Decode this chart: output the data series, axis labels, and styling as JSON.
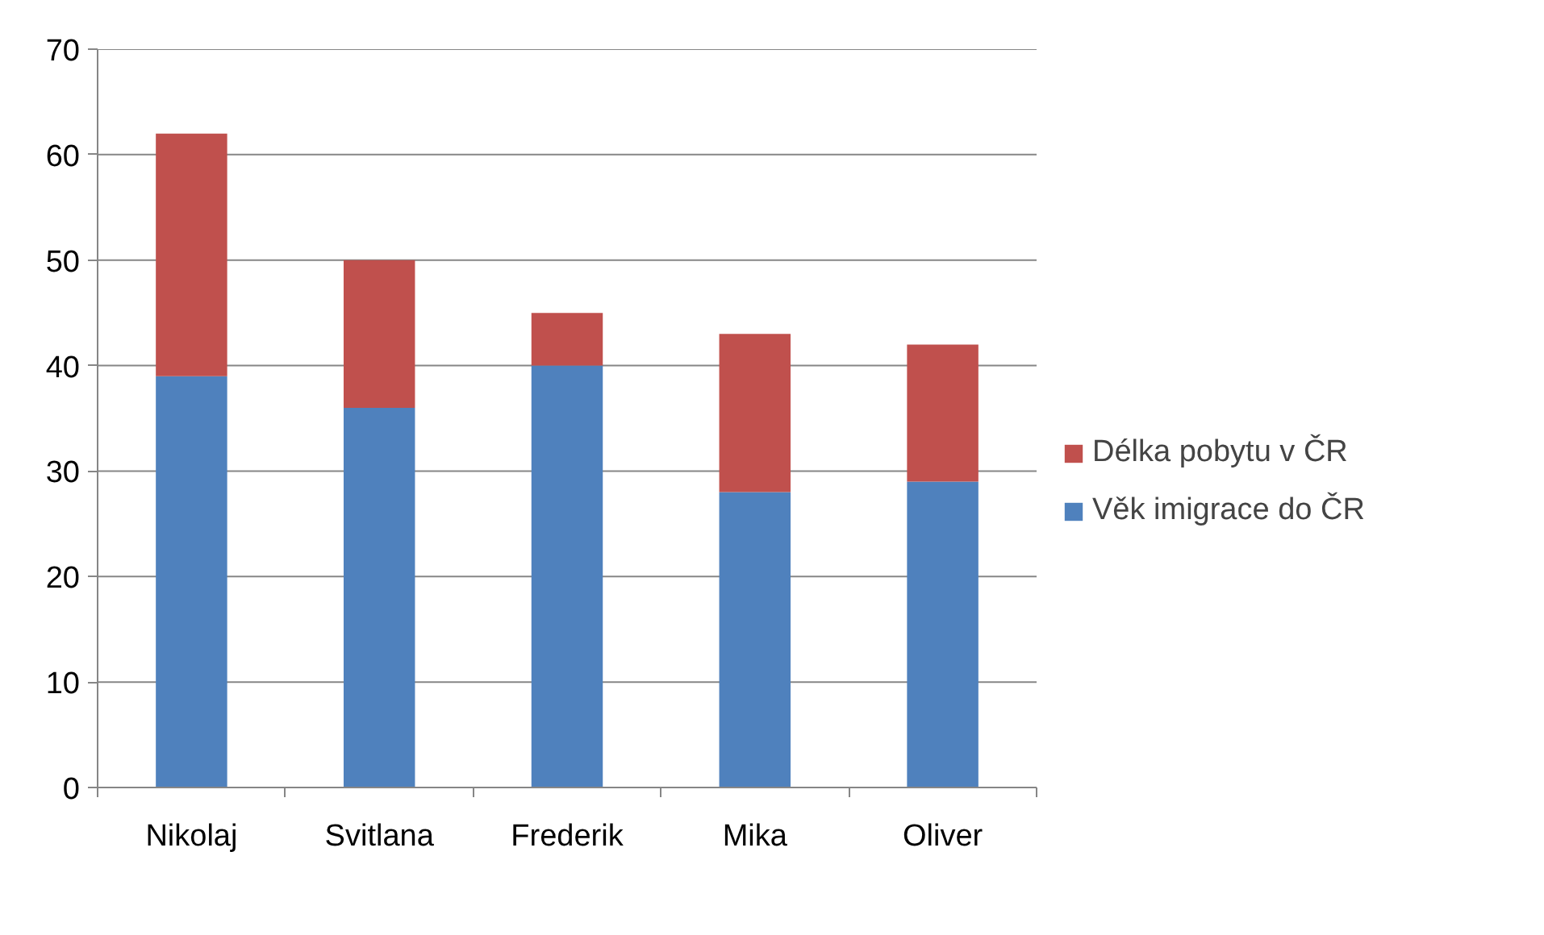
{
  "chart_data": {
    "type": "bar",
    "stacked": true,
    "categories": [
      "Nikolaj",
      "Svitlana",
      "Frederik",
      "Mika",
      "Oliver"
    ],
    "series": [
      {
        "name": "Věk imigrace do ČR",
        "color": "#4f81bd",
        "values": [
          39,
          36,
          40,
          28,
          29
        ]
      },
      {
        "name": "Délka pobytu v ČR",
        "color": "#c0504d",
        "values": [
          23,
          14,
          5,
          15,
          13
        ]
      }
    ],
    "ylim": [
      0,
      70
    ],
    "yticks": [
      0,
      10,
      20,
      30,
      40,
      50,
      60,
      70
    ],
    "grid": "y",
    "legend": "right"
  }
}
